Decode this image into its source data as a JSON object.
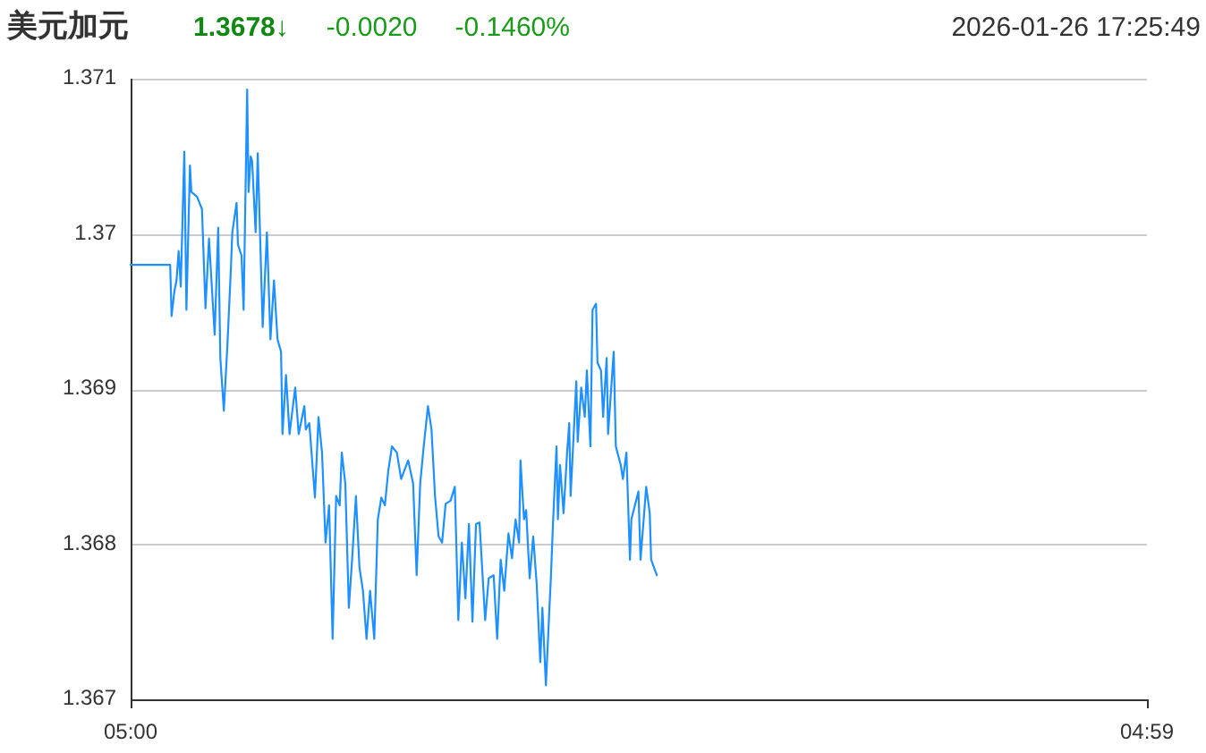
{
  "chart_data": {
    "type": "line",
    "title": "美元加元",
    "annotations": [
      "1.3678↓",
      "-0.0020",
      "-0.1460%",
      "2026-01-26 17:25:49"
    ],
    "x": [
      "2026-01-26T05:00",
      "2026-01-26T05:56",
      "2026-01-26T05:58",
      "2026-01-26T06:02",
      "2026-01-26T06:05",
      "2026-01-26T06:08",
      "2026-01-26T06:11",
      "2026-01-26T06:16",
      "2026-01-26T06:19",
      "2026-01-26T06:24",
      "2026-01-26T06:26",
      "2026-01-26T06:34",
      "2026-01-26T06:41",
      "2026-01-26T06:46",
      "2026-01-26T06:51",
      "2026-01-26T06:59",
      "2026-01-26T07:04",
      "2026-01-26T07:07",
      "2026-01-26T07:12",
      "2026-01-26T07:17",
      "2026-01-26T07:22",
      "2026-01-26T07:24",
      "2026-01-26T07:30",
      "2026-01-26T07:32",
      "2026-01-26T07:37",
      "2026-01-26T07:40",
      "2026-01-26T07:45",
      "2026-01-26T07:47",
      "2026-01-26T07:50",
      "2026-01-26T07:52",
      "2026-01-26T07:57",
      "2026-01-26T08:00",
      "2026-01-26T08:07",
      "2026-01-26T08:13",
      "2026-01-26T08:18",
      "2026-01-26T08:23",
      "2026-01-26T08:28",
      "2026-01-26T08:33",
      "2026-01-26T08:35",
      "2026-01-26T08:40",
      "2026-01-26T08:45",
      "2026-01-26T08:53",
      "2026-01-26T08:58",
      "2026-01-26T09:06",
      "2026-01-26T09:08",
      "2026-01-26T09:13",
      "2026-01-26T09:21",
      "2026-01-26T09:26",
      "2026-01-26T09:31",
      "2026-01-26T09:36",
      "2026-01-26T09:41",
      "2026-01-26T09:46",
      "2026-01-26T09:51",
      "2026-01-26T09:56",
      "2026-01-26T09:59",
      "2026-01-26T10:04",
      "2026-01-26T10:09",
      "2026-01-26T10:14",
      "2026-01-26T10:19",
      "2026-01-26T10:24",
      "2026-01-26T10:29",
      "2026-01-26T10:34",
      "2026-01-26T10:39",
      "2026-01-26T10:45",
      "2026-01-26T10:50",
      "2026-01-26T10:55",
      "2026-01-26T11:00",
      "2026-01-26T11:05",
      "2026-01-26T11:10",
      "2026-01-26T11:17",
      "2026-01-26T11:23",
      "2026-01-26T11:28",
      "2026-01-26T11:33",
      "2026-01-26T11:40",
      "2026-01-26T11:45",
      "2026-01-26T11:50",
      "2026-01-26T11:55",
      "2026-01-26T12:01",
      "2026-01-26T12:06",
      "2026-01-26T12:11",
      "2026-01-26T12:16",
      "2026-01-26T12:21",
      "2026-01-26T12:26",
      "2026-01-26T12:33",
      "2026-01-26T12:39",
      "2026-01-26T12:44",
      "2026-01-26T12:49",
      "2026-01-26T12:54",
      "2026-01-26T12:59",
      "2026-01-26T13:04",
      "2026-01-26T13:09",
      "2026-01-26T13:14",
      "2026-01-26T13:22",
      "2026-01-26T13:27",
      "2026-01-26T13:34",
      "2026-01-26T13:39",
      "2026-01-26T13:44",
      "2026-01-26T13:49",
      "2026-01-26T13:55",
      "2026-01-26T14:00",
      "2026-01-26T14:05",
      "2026-01-26T14:10",
      "2026-01-26T14:12",
      "2026-01-26T14:17",
      "2026-01-26T14:20",
      "2026-01-26T14:25",
      "2026-01-26T14:30",
      "2026-01-26T14:35",
      "2026-01-26T14:40",
      "2026-01-26T14:43",
      "2026-01-26T14:48",
      "2026-01-26T14:53",
      "2026-01-26T14:55",
      "2026-01-26T14:58",
      "2026-01-26T15:03",
      "2026-01-26T15:05",
      "2026-01-26T15:08",
      "2026-01-26T15:13",
      "2026-01-26T15:18",
      "2026-01-26T15:21",
      "2026-01-26T15:23",
      "2026-01-26T15:31",
      "2026-01-26T15:33",
      "2026-01-26T15:38",
      "2026-01-26T15:43",
      "2026-01-26T15:46",
      "2026-01-26T15:51",
      "2026-01-26T15:54",
      "2026-01-26T15:59",
      "2026-01-26T16:01",
      "2026-01-26T16:06",
      "2026-01-26T16:09",
      "2026-01-26T16:14",
      "2026-01-26T16:16",
      "2026-01-26T16:24",
      "2026-01-26T16:27",
      "2026-01-26T16:34",
      "2026-01-26T16:37",
      "2026-01-26T16:42",
      "2026-01-26T16:47",
      "2026-01-26T16:49",
      "2026-01-26T16:54",
      "2026-01-26T16:59",
      "2026-01-26T17:02",
      "2026-01-26T17:10",
      "2026-01-26T17:15",
      "2026-01-26T17:17",
      "2026-01-26T17:25"
    ],
    "values": [
      1.3698,
      1.3698,
      1.36947,
      1.36963,
      1.3697,
      1.36989,
      1.36966,
      1.37053,
      1.36951,
      1.37044,
      1.37027,
      1.37024,
      1.37016,
      1.36952,
      1.36997,
      1.36935,
      1.37004,
      1.3692,
      1.36886,
      1.36928,
      1.36978,
      1.37001,
      1.3702,
      1.36993,
      1.36986,
      1.36951,
      1.37093,
      1.37027,
      1.3705,
      1.37047,
      1.37001,
      1.37052,
      1.3694,
      1.37001,
      1.36932,
      1.3697,
      1.36932,
      1.36924,
      1.36871,
      1.36909,
      1.36871,
      1.36901,
      1.36871,
      1.36889,
      1.36874,
      1.36878,
      1.3683,
      1.36882,
      1.36859,
      1.36801,
      1.36825,
      1.36739,
      1.36831,
      1.36825,
      1.36859,
      1.36839,
      1.36759,
      1.36793,
      1.36831,
      1.36785,
      1.3677,
      1.36739,
      1.3677,
      1.36739,
      1.36816,
      1.3683,
      1.36825,
      1.36848,
      1.36863,
      1.36859,
      1.36842,
      1.36848,
      1.36854,
      1.36839,
      1.3678,
      1.36839,
      1.36863,
      1.36889,
      1.36874,
      1.36831,
      1.36805,
      1.36801,
      1.36826,
      1.36828,
      1.36837,
      1.36751,
      1.36801,
      1.36765,
      1.36813,
      1.3675,
      1.36813,
      1.36814,
      1.36751,
      1.36778,
      1.3678,
      1.36739,
      1.3679,
      1.3677,
      1.36807,
      1.36791,
      1.36816,
      1.36801,
      1.36854,
      1.36816,
      1.36822,
      1.36778,
      1.36805,
      1.36774,
      1.36724,
      1.36759,
      1.36709,
      1.36759,
      1.36778,
      1.36813,
      1.36863,
      1.36816,
      1.36851,
      1.3682,
      1.36859,
      1.36878,
      1.36831,
      1.36905,
      1.36866,
      1.36901,
      1.36882,
      1.36912,
      1.36863,
      1.36951,
      1.36955,
      1.36917,
      1.36912,
      1.36882,
      1.3692,
      1.36871,
      1.36924,
      1.36863,
      1.36851,
      1.36842,
      1.36859,
      1.3679,
      1.36816,
      1.36825,
      1.36834,
      1.3679,
      1.36837,
      1.3682,
      1.3679,
      1.3678
    ],
    "color": "#1e90ff",
    "xlim": [
      "2026-01-26T05:00",
      "2026-01-27T04:59"
    ],
    "xticks": [
      {
        "value": "2026-01-26T05:00",
        "label": "05:00"
      },
      {
        "value": "2026-01-27T04:59",
        "label": "04:59"
      }
    ],
    "ylim": [
      1.367,
      1.371
    ],
    "yticks": [
      1.367,
      1.368,
      1.369,
      1.37,
      1.371
    ],
    "grid": "y"
  }
}
